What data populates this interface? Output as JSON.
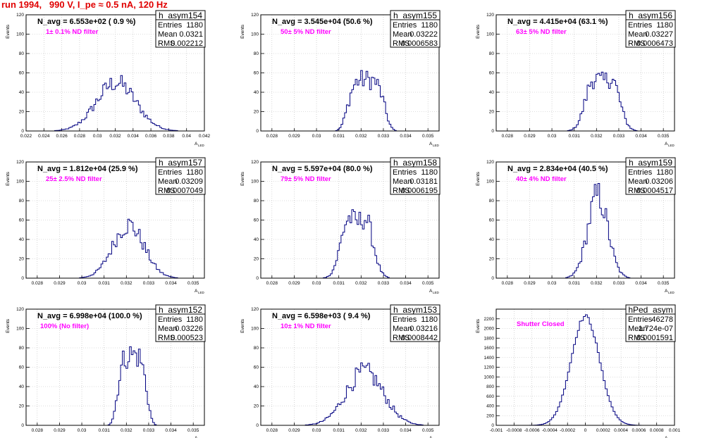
{
  "title": "run 1994,   990 V, I_pe ≈ 0.5 nA, 120 Hz",
  "colors": {
    "title": "#e00000",
    "annotation": "#ff00ff",
    "histogram": "#000080"
  },
  "chart_data": [
    {
      "type": "bar",
      "name": "h_asym154",
      "entries": "1180",
      "mean": "0.0321",
      "rms": "0.002212",
      "navg": "N_avg = 6.553e+02 ( 0.9 %)",
      "annotation": "1± 0.1% ND filter",
      "ylabel": "Events",
      "xlabel": "A",
      "xlabel_sub": "LED",
      "xlim": [
        0.022,
        0.042
      ],
      "ylim": [
        0,
        120
      ],
      "xticks": [
        "0.022",
        "0.024",
        "0.026",
        "0.028",
        "0.03",
        "0.032",
        "0.034",
        "0.036",
        "0.038",
        "0.04",
        "0.042"
      ],
      "yticks": [
        "0",
        "20",
        "40",
        "60",
        "80",
        "100",
        "120"
      ],
      "mu": 0.0321,
      "sigma": 0.0022,
      "peak": 50
    },
    {
      "type": "bar",
      "name": "h_asym155",
      "entries": "1180",
      "mean": "0.03222",
      "rms": "0.0006583",
      "navg": "N_avg = 3.545e+04 (50.6 %)",
      "annotation": "50± 5% ND filter",
      "ylabel": "Events",
      "xlabel": "A",
      "xlabel_sub": "LED",
      "xlim": [
        0.0275,
        0.0355
      ],
      "ylim": [
        0,
        120
      ],
      "xticks": [
        "0.028",
        "0.029",
        "0.03",
        "0.031",
        "0.032",
        "0.033",
        "0.034",
        "0.035"
      ],
      "yticks": [
        "0",
        "20",
        "40",
        "60",
        "80",
        "100",
        "120"
      ],
      "mu": 0.03222,
      "sigma": 0.00066,
      "peak": 53,
      "flat": true
    },
    {
      "type": "bar",
      "name": "h_asym156",
      "entries": "1180",
      "mean": "0.03227",
      "rms": "0.0006473",
      "navg": "N_avg = 4.415e+04 (63.1 %)",
      "annotation": "63± 5% ND filter",
      "ylabel": "Events",
      "xlabel": "A",
      "xlabel_sub": "LED",
      "xlim": [
        0.0275,
        0.0355
      ],
      "ylim": [
        0,
        120
      ],
      "xticks": [
        "0.028",
        "0.029",
        "0.03",
        "0.031",
        "0.032",
        "0.033",
        "0.034",
        "0.035"
      ],
      "yticks": [
        "0",
        "20",
        "40",
        "60",
        "80",
        "100",
        "120"
      ],
      "mu": 0.03227,
      "sigma": 0.00065,
      "peak": 60,
      "bimodal": true
    },
    {
      "type": "bar",
      "name": "h_asym157",
      "entries": "1180",
      "mean": "0.03209",
      "rms": "0.0007049",
      "navg": "N_avg = 1.812e+04 (25.9 %)",
      "annotation": "25± 2.5% ND filter",
      "ylabel": "Events",
      "xlabel": "A",
      "xlabel_sub": "LED",
      "xlim": [
        0.0275,
        0.0355
      ],
      "ylim": [
        0,
        120
      ],
      "xticks": [
        "0.028",
        "0.029",
        "0.03",
        "0.031",
        "0.032",
        "0.033",
        "0.034",
        "0.035"
      ],
      "yticks": [
        "0",
        "20",
        "40",
        "60",
        "80",
        "100",
        "120"
      ],
      "mu": 0.03209,
      "sigma": 0.0007,
      "peak": 55
    },
    {
      "type": "bar",
      "name": "h_asym158",
      "entries": "1180",
      "mean": "0.03181",
      "rms": "0.0006195",
      "navg": "N_avg = 5.597e+04 (80.0 %)",
      "annotation": "79± 5% ND filter",
      "ylabel": "Events",
      "xlabel": "A",
      "xlabel_sub": "LED",
      "xlim": [
        0.0275,
        0.0355
      ],
      "ylim": [
        0,
        120
      ],
      "xticks": [
        "0.028",
        "0.029",
        "0.03",
        "0.031",
        "0.032",
        "0.033",
        "0.034",
        "0.035"
      ],
      "yticks": [
        "0",
        "20",
        "40",
        "60",
        "80",
        "100",
        "120"
      ],
      "mu": 0.03181,
      "sigma": 0.00062,
      "peak": 68,
      "bimodal": true
    },
    {
      "type": "bar",
      "name": "h_asym159",
      "entries": "1180",
      "mean": "0.03206",
      "rms": "0.0004517",
      "navg": "N_avg = 2.834e+04 (40.5 %)",
      "annotation": "40± 4% ND filter",
      "ylabel": "Events",
      "xlabel": "A",
      "xlabel_sub": "LED",
      "xlim": [
        0.0275,
        0.0355
      ],
      "ylim": [
        0,
        120
      ],
      "xticks": [
        "0.028",
        "0.029",
        "0.03",
        "0.031",
        "0.032",
        "0.033",
        "0.034",
        "0.035"
      ],
      "yticks": [
        "0",
        "20",
        "40",
        "60",
        "80",
        "100",
        "120"
      ],
      "mu": 0.03206,
      "sigma": 0.00045,
      "peak": 85
    },
    {
      "type": "bar",
      "name": "h_asym152",
      "entries": "1180",
      "mean": "0.03226",
      "rms": "0.000523",
      "navg": "N_avg = 6.998e+04 (100.0 %)",
      "annotation": "100% (No filter)",
      "ylabel": "Events",
      "xlabel": "A",
      "xlabel_sub": "LED",
      "xlim": [
        0.0275,
        0.0355
      ],
      "ylim": [
        0,
        120
      ],
      "xticks": [
        "0.028",
        "0.029",
        "0.03",
        "0.031",
        "0.032",
        "0.033",
        "0.034",
        "0.035"
      ],
      "yticks": [
        "0",
        "20",
        "40",
        "60",
        "80",
        "100",
        "120"
      ],
      "mu": 0.03226,
      "sigma": 0.00052,
      "peak": 73,
      "flat": true
    },
    {
      "type": "bar",
      "name": "h_asym153",
      "entries": "1180",
      "mean": "0.03216",
      "rms": "0.0008442",
      "navg": "N_avg = 6.598e+03 ( 9.4 %)",
      "annotation": "10± 1% ND filter",
      "ylabel": "Events",
      "xlabel": "A",
      "xlabel_sub": "LED",
      "xlim": [
        0.0275,
        0.0355
      ],
      "ylim": [
        0,
        120
      ],
      "xticks": [
        "0.028",
        "0.029",
        "0.03",
        "0.031",
        "0.032",
        "0.033",
        "0.034",
        "0.035"
      ],
      "yticks": [
        "0",
        "20",
        "40",
        "60",
        "80",
        "100",
        "120"
      ],
      "mu": 0.03216,
      "sigma": 0.00084,
      "peak": 55
    },
    {
      "type": "bar",
      "name": "hPed_asym",
      "entries": "46278",
      "mean": "1.724e-07",
      "rms": "0.0001591",
      "navg": "",
      "annotation": "Shutter Closed",
      "ylabel": "Events",
      "xlabel": "A",
      "xlabel_sub": "LED",
      "xlim": [
        -0.001,
        0.001
      ],
      "ylim": [
        0,
        2400
      ],
      "xticks": [
        "-0.001",
        "-0.0008",
        "-0.0006",
        "-0.0004",
        "-0.0002",
        "0",
        "0.0002",
        "0.0004",
        "0.0006",
        "0.0008",
        "0.001"
      ],
      "yticks": [
        "0",
        "200",
        "400",
        "600",
        "800",
        "1000",
        "1200",
        "1400",
        "1600",
        "1800",
        "2000",
        "2200"
      ],
      "mu": 0.0,
      "sigma": 0.000159,
      "peak": 2250,
      "smooth": true
    }
  ]
}
